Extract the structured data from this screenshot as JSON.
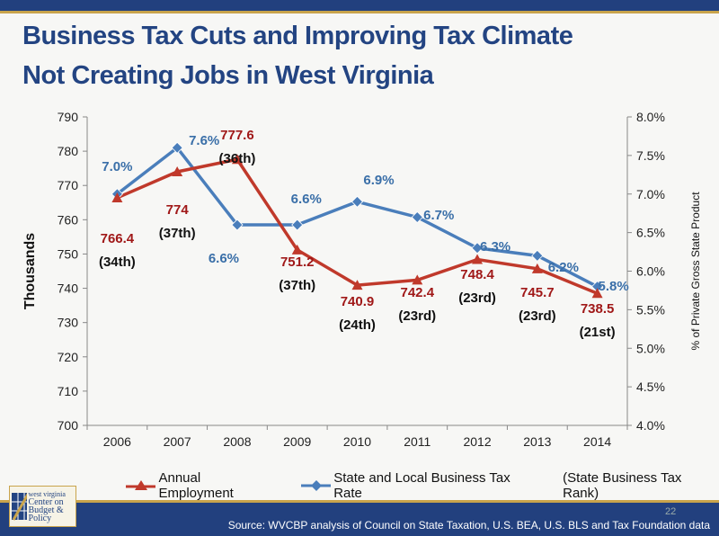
{
  "title_line1": "Business Tax Cuts and Improving Tax Climate",
  "title_line2": "Not Creating Jobs in West Virginia",
  "chart_data": {
    "type": "line",
    "categories": [
      "2006",
      "2007",
      "2008",
      "2009",
      "2010",
      "2011",
      "2012",
      "2013",
      "2014"
    ],
    "series": [
      {
        "name": "Annual Employment",
        "axis": "left",
        "color": "#c0392b",
        "marker": "triangle",
        "values": [
          766.4,
          774,
          777.6,
          751.2,
          740.9,
          742.4,
          748.4,
          745.7,
          738.5
        ],
        "labels": [
          "766.4",
          "774",
          "777.6",
          "751.2",
          "740.9",
          "742.4",
          "748.4",
          "745.7",
          "738.5"
        ],
        "ranks": [
          "(34th)",
          "(37th)",
          "(36th)",
          "(37th)",
          "(24th)",
          "(23rd)",
          "(23rd)",
          "(23rd)",
          "(21st)"
        ]
      },
      {
        "name": "State and Local Business Tax Rate",
        "axis": "right",
        "color": "#4a7ebb",
        "marker": "diamond",
        "values": [
          7.0,
          7.6,
          6.6,
          6.6,
          6.9,
          6.7,
          6.3,
          6.2,
          5.8
        ],
        "labels": [
          "7.0%",
          "7.6%",
          "6.6%",
          "6.6%",
          "6.9%",
          "6.7%",
          "6.3%",
          "6.2%",
          "5.8%"
        ]
      }
    ],
    "ylabel": "Thousands",
    "y2label": "% of Private  Gross State Product",
    "ylim": [
      700,
      790
    ],
    "y2lim": [
      4.0,
      8.0
    ],
    "yticks": [
      "700",
      "710",
      "720",
      "730",
      "740",
      "750",
      "760",
      "770",
      "780",
      "790"
    ],
    "y2ticks": [
      "4.0%",
      "4.5%",
      "5.0%",
      "5.5%",
      "6.0%",
      "6.5%",
      "7.0%",
      "7.5%",
      "8.0%"
    ],
    "legend_note": "(State Business Tax Rank)",
    "legend_position": "bottom",
    "grid": false,
    "label_colors": {
      "employment": "#a01818",
      "tax": "#3a6fa8",
      "rank": "#111111"
    }
  },
  "source": "Source: WVCBP analysis of Council on State Taxation, U.S. BEA, U.S. BLS and Tax Foundation data",
  "page_number": "22",
  "logo_text": [
    "west virginia",
    "Center on",
    "Budget & Policy"
  ]
}
